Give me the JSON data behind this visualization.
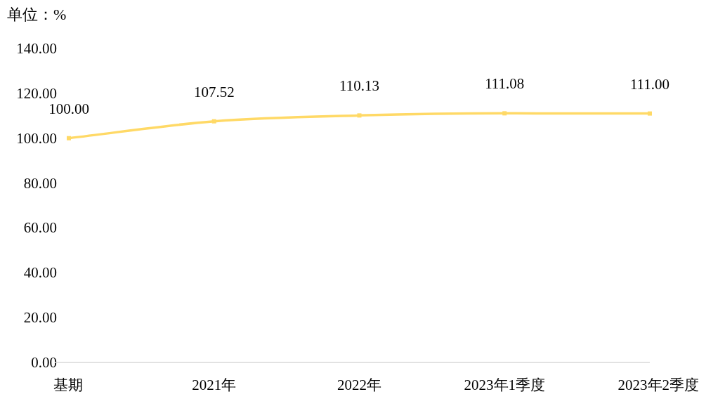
{
  "chart_data": {
    "type": "line",
    "ylabel": "单位：%",
    "categories": [
      "基期",
      "2021年",
      "2022年",
      "2023年1季度",
      "2023年2季度"
    ],
    "series": [
      {
        "color": "#ffd966",
        "values": [
          100.0,
          107.52,
          110.13,
          111.08,
          111.0
        ],
        "value_labels": [
          "100.00",
          "107.52",
          "110.13",
          "111.08",
          "111.00"
        ]
      }
    ],
    "ylim": [
      0,
      140
    ],
    "yticks": [
      {
        "value": 0,
        "label": "0.00"
      },
      {
        "value": 20,
        "label": "20.00"
      },
      {
        "value": 40,
        "label": "40.00"
      },
      {
        "value": 60,
        "label": "60.00"
      },
      {
        "value": 80,
        "label": "80.00"
      },
      {
        "value": 100,
        "label": "100.00"
      },
      {
        "value": 120,
        "label": "120.00"
      },
      {
        "value": 140,
        "label": "140.00"
      }
    ],
    "marker": "square"
  }
}
